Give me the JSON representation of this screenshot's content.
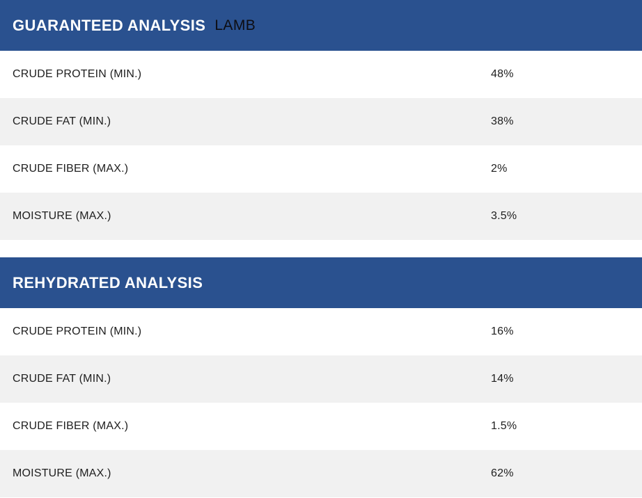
{
  "colors": {
    "header_bg": "#2a518f",
    "header_text": "#ffffff",
    "variant_text": "#0d0d12",
    "row_bg": "#ffffff",
    "row_alt_bg": "#f1f1f1",
    "text": "#1e1e1e"
  },
  "sections": [
    {
      "title": "GUARANTEED ANALYSIS",
      "variant": "LAMB",
      "rows": [
        {
          "label": "CRUDE PROTEIN (MIN.)",
          "value": "48%"
        },
        {
          "label": "CRUDE FAT (MIN.)",
          "value": "38%"
        },
        {
          "label": "CRUDE FIBER (MAX.)",
          "value": "2%"
        },
        {
          "label": "MOISTURE (MAX.)",
          "value": "3.5%"
        }
      ]
    },
    {
      "title": "REHYDRATED ANALYSIS",
      "variant": "",
      "rows": [
        {
          "label": "CRUDE PROTEIN (MIN.)",
          "value": "16%"
        },
        {
          "label": "CRUDE FAT (MIN.)",
          "value": "14%"
        },
        {
          "label": "CRUDE FIBER (MAX.)",
          "value": "1.5%"
        },
        {
          "label": "MOISTURE (MAX.)",
          "value": "62%"
        }
      ]
    }
  ]
}
